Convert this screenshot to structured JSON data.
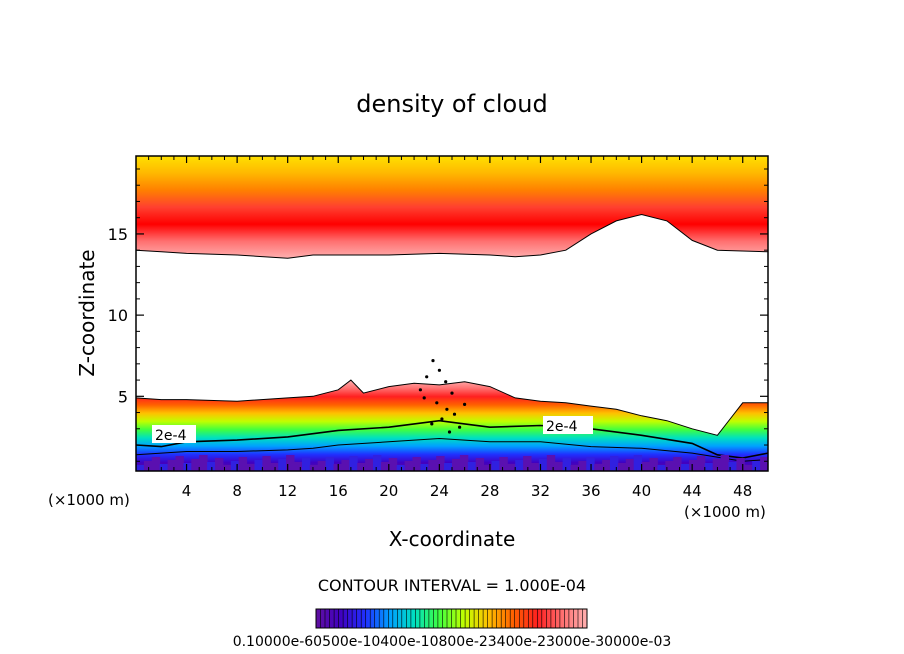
{
  "chart_data": {
    "type": "contour",
    "title": "density of cloud",
    "xlabel": "X-coordinate",
    "ylabel": "Z-coordinate",
    "x_unit_label": "(×1000 m)",
    "x_unit_label_right": "(×1000 m)",
    "xlim": [
      0,
      50
    ],
    "ylim": [
      0.4,
      19.8
    ],
    "x_ticks": [
      4,
      8,
      12,
      16,
      20,
      24,
      28,
      32,
      36,
      40,
      44,
      48
    ],
    "y_ticks": [
      5,
      10,
      15
    ],
    "contour_interval_text": "CONTOUR INTERVAL = 1.000E-04",
    "contour_line_labels": [
      "2e-4",
      "2e-4"
    ],
    "colorbar_labels_text": "0.10000e-60500e-10400e-10800e-23400e-23000e-30000e-03",
    "upper_cloud_base_km": [
      [
        0,
        14.0
      ],
      [
        2,
        13.9
      ],
      [
        4,
        13.8
      ],
      [
        8,
        13.7
      ],
      [
        12,
        13.5
      ],
      [
        14,
        13.7
      ],
      [
        20,
        13.7
      ],
      [
        24,
        13.8
      ],
      [
        28,
        13.7
      ],
      [
        30,
        13.6
      ],
      [
        32,
        13.7
      ],
      [
        34,
        14.0
      ],
      [
        36,
        15.0
      ],
      [
        38,
        15.8
      ],
      [
        40,
        16.2
      ],
      [
        42,
        15.8
      ],
      [
        44,
        14.6
      ],
      [
        46,
        14.0
      ],
      [
        50,
        13.9
      ]
    ],
    "lower_cloud_top_km": [
      [
        0,
        4.9
      ],
      [
        2,
        4.8
      ],
      [
        4,
        4.8
      ],
      [
        8,
        4.7
      ],
      [
        12,
        4.9
      ],
      [
        14,
        5.0
      ],
      [
        16,
        5.4
      ],
      [
        17,
        6.0
      ],
      [
        18,
        5.2
      ],
      [
        20,
        5.6
      ],
      [
        22,
        5.8
      ],
      [
        24,
        5.7
      ],
      [
        26,
        5.9
      ],
      [
        28,
        5.6
      ],
      [
        30,
        4.9
      ],
      [
        32,
        4.7
      ],
      [
        34,
        4.6
      ],
      [
        36,
        4.4
      ],
      [
        38,
        4.2
      ],
      [
        40,
        3.8
      ],
      [
        42,
        3.5
      ],
      [
        44,
        3.0
      ],
      [
        46,
        2.6
      ],
      [
        47,
        3.6
      ],
      [
        48,
        4.6
      ],
      [
        50,
        4.6
      ]
    ],
    "contour_2e4_km": [
      [
        0,
        2.0
      ],
      [
        2,
        1.9
      ],
      [
        4,
        2.2
      ],
      [
        8,
        2.3
      ],
      [
        12,
        2.5
      ],
      [
        16,
        2.9
      ],
      [
        20,
        3.1
      ],
      [
        24,
        3.5
      ],
      [
        28,
        3.1
      ],
      [
        32,
        3.2
      ],
      [
        36,
        3.0
      ],
      [
        40,
        2.6
      ],
      [
        44,
        2.1
      ],
      [
        46,
        1.4
      ],
      [
        48,
        1.2
      ],
      [
        50,
        1.5
      ]
    ],
    "contour_3e4_km": [
      [
        0,
        1.4
      ],
      [
        4,
        1.6
      ],
      [
        8,
        1.6
      ],
      [
        12,
        1.7
      ],
      [
        14,
        1.8
      ],
      [
        16,
        2.0
      ],
      [
        20,
        2.2
      ],
      [
        24,
        2.4
      ],
      [
        28,
        2.2
      ],
      [
        32,
        2.2
      ],
      [
        36,
        1.9
      ],
      [
        40,
        1.8
      ],
      [
        44,
        1.5
      ],
      [
        48,
        1.0
      ],
      [
        50,
        1.1
      ]
    ],
    "colors": {
      "upper_band": [
        "#ffe000",
        "#ffb800",
        "#ff8000",
        "#ff4030",
        "#ff0000",
        "#ff7070",
        "#ffb0b0"
      ],
      "lower_band": [
        "#ffb0b0",
        "#ff7070",
        "#ff2020",
        "#ff6000",
        "#ffc000",
        "#c0ff00",
        "#40ff40",
        "#00e0c0",
        "#00a0ff",
        "#2030ff",
        "#4000c0",
        "#6010a0"
      ]
    }
  }
}
